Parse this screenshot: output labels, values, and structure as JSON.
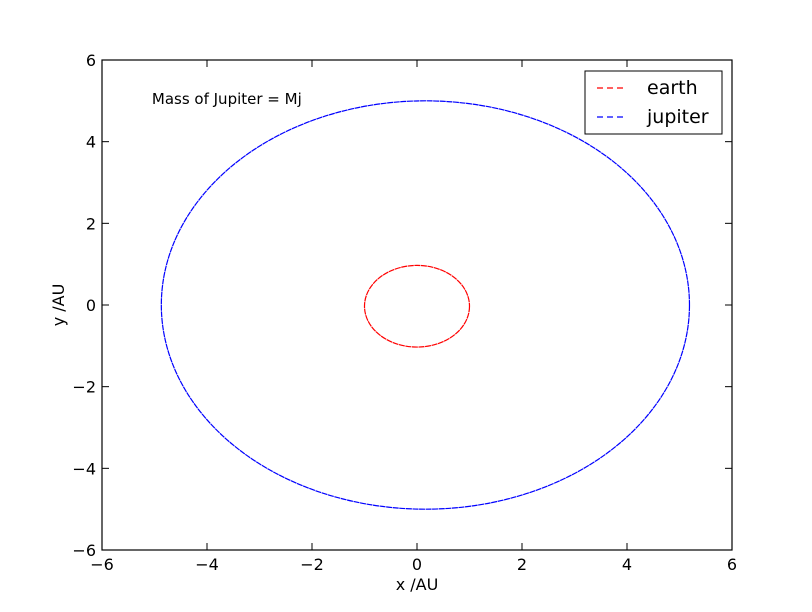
{
  "chart_data": {
    "type": "line",
    "title": "",
    "xlabel": "x /AU",
    "ylabel": "y /AU",
    "xlim": [
      -6,
      6
    ],
    "ylim": [
      -6,
      6
    ],
    "xticks": [
      -6,
      -4,
      -2,
      0,
      2,
      4,
      6
    ],
    "yticks": [
      -6,
      -4,
      -2,
      0,
      2,
      4,
      6
    ],
    "xtick_labels": [
      "−6",
      "−4",
      "−2",
      "0",
      "2",
      "4",
      "6"
    ],
    "ytick_labels": [
      "−6",
      "−4",
      "−2",
      "0",
      "2",
      "4",
      "6"
    ],
    "grid": false,
    "legend_position": "top-right",
    "annotation": {
      "text": "Mass of Jupiter = Mj",
      "x": -5.05,
      "y": 5.05
    },
    "series": [
      {
        "name": "earth",
        "color": "#ff0000",
        "linestyle": "dashed",
        "orbit": {
          "cx": 0.0,
          "cy": -0.03,
          "rx": 1.0,
          "ry": 1.0
        }
      },
      {
        "name": "jupiter",
        "color": "#0000ff",
        "linestyle": "dashed",
        "orbit": {
          "cx": 0.16,
          "cy": 0.0,
          "rx": 5.03,
          "ry": 5.0
        }
      }
    ]
  }
}
